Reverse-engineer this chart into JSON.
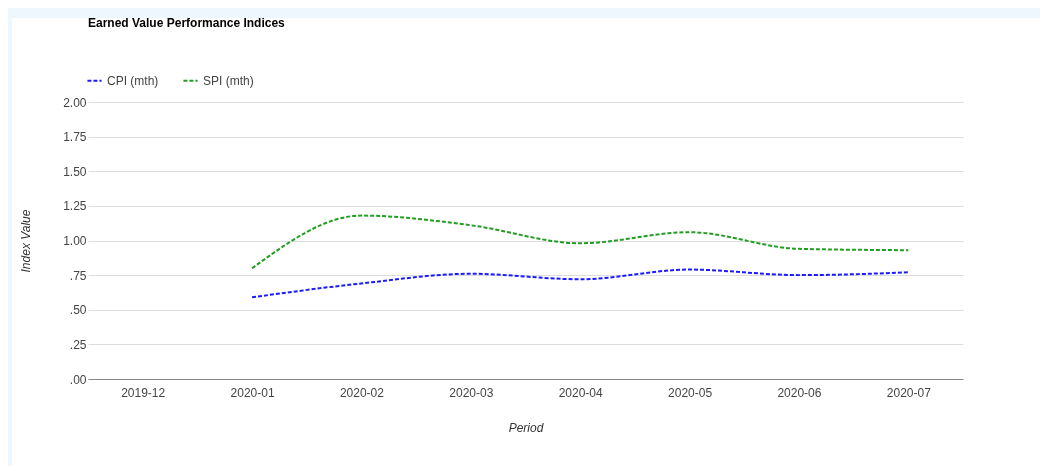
{
  "chart_data": {
    "type": "line",
    "title": "Earned Value Performance Indices",
    "xlabel": "Period",
    "ylabel": "Index Value",
    "categories": [
      "2019-12",
      "2020-01",
      "2020-02",
      "2020-03",
      "2020-04",
      "2020-05",
      "2020-06",
      "2020-07"
    ],
    "series": [
      {
        "name": "CPI (mth)",
        "color": "#1a1aff",
        "values": [
          null,
          0.59,
          0.69,
          0.76,
          0.72,
          0.79,
          0.75,
          0.77
        ]
      },
      {
        "name": "SPI (mth)",
        "color": "#1f9e1f",
        "values": [
          null,
          0.8,
          1.18,
          1.11,
          0.98,
          1.06,
          0.94,
          0.93
        ]
      }
    ],
    "ylim": [
      0,
      2
    ],
    "yticks": [
      {
        "value": 0,
        "label": ".00"
      },
      {
        "value": 0.25,
        "label": ".25"
      },
      {
        "value": 0.5,
        "label": ".50"
      },
      {
        "value": 0.75,
        "label": ".75"
      },
      {
        "value": 1,
        "label": "1.00"
      },
      {
        "value": 1.25,
        "label": "1.25"
      },
      {
        "value": 1.5,
        "label": "1.50"
      },
      {
        "value": 1.75,
        "label": "1.75"
      },
      {
        "value": 2,
        "label": "2.00"
      }
    ],
    "grid": "y",
    "legend": "top left",
    "line_style": "dashed",
    "marker": "none"
  }
}
